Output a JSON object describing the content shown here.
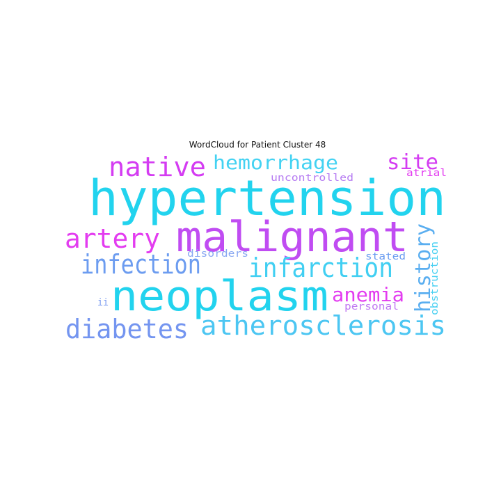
{
  "figure": {
    "title": "WordCloud for Patient Cluster 48"
  },
  "words": [
    {
      "text": "hypertension",
      "color": "#22d3ee"
    },
    {
      "text": "malignant",
      "color": "#c04cf2"
    },
    {
      "text": "neoplasm",
      "color": "#22d3ee"
    },
    {
      "text": "atherosclerosis",
      "color": "#4cc6f2"
    },
    {
      "text": "infarction",
      "color": "#41cff2"
    },
    {
      "text": "diabetes",
      "color": "#7495f0"
    },
    {
      "text": "infection",
      "color": "#6c9cf0"
    },
    {
      "text": "artery",
      "color": "#e33cf0"
    },
    {
      "text": "native",
      "color": "#d43cf2"
    },
    {
      "text": "hemorrhage",
      "color": "#43d2f2"
    },
    {
      "text": "site",
      "color": "#d43cf2"
    },
    {
      "text": "anemia",
      "color": "#e33cf0"
    },
    {
      "text": "history",
      "color": "#5aaef0"
    },
    {
      "text": "uncontrolled",
      "color": "#b67cf2"
    },
    {
      "text": "atrial",
      "color": "#e33cf0"
    },
    {
      "text": "disorders",
      "color": "#8aa8f2"
    },
    {
      "text": "stated",
      "color": "#6a9cf0"
    },
    {
      "text": "obstruction",
      "color": "#48d0f2"
    },
    {
      "text": "personal",
      "color": "#c07af2"
    },
    {
      "text": "ii",
      "color": "#7a9af0"
    }
  ]
}
